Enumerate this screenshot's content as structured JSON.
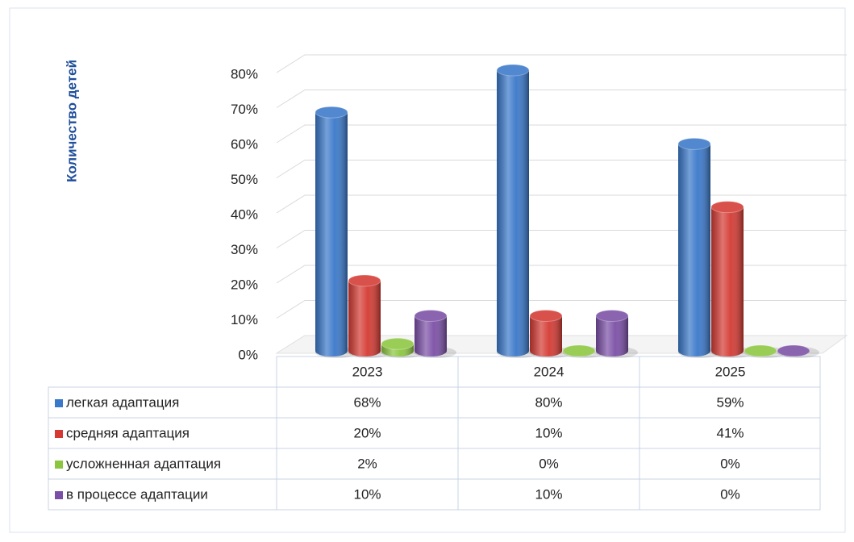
{
  "chart_data": {
    "type": "bar3d",
    "y_axis_label": "Количество детей",
    "categories": [
      "2023",
      "2024",
      "2025"
    ],
    "series": [
      {
        "name": "легкая адаптация",
        "color": "#3a78c9",
        "values": [
          68,
          80,
          59
        ],
        "value_labels": [
          "68%",
          "80%",
          "59%"
        ]
      },
      {
        "name": "средняя адаптация",
        "color": "#d43a33",
        "values": [
          20,
          10,
          41
        ],
        "value_labels": [
          "20%",
          "10%",
          "41%"
        ]
      },
      {
        "name": "усложненная адаптация",
        "color": "#8cc63f",
        "values": [
          2,
          0,
          0
        ],
        "value_labels": [
          "2%",
          "0%",
          "0%"
        ]
      },
      {
        "name": "в процессе адаптации",
        "color": "#7b4fa6",
        "values": [
          10,
          10,
          0
        ],
        "value_labels": [
          "10%",
          "10%",
          "0%"
        ]
      }
    ],
    "ylim": [
      0,
      80
    ],
    "yticks": [
      {
        "value": 0,
        "label": "0%"
      },
      {
        "value": 10,
        "label": "10%"
      },
      {
        "value": 20,
        "label": "20%"
      },
      {
        "value": 30,
        "label": "30%"
      },
      {
        "value": 40,
        "label": "40%"
      },
      {
        "value": 50,
        "label": "50%"
      },
      {
        "value": 60,
        "label": "60%"
      },
      {
        "value": 70,
        "label": "70%"
      },
      {
        "value": 80,
        "label": "80%"
      }
    ],
    "grid": true
  }
}
